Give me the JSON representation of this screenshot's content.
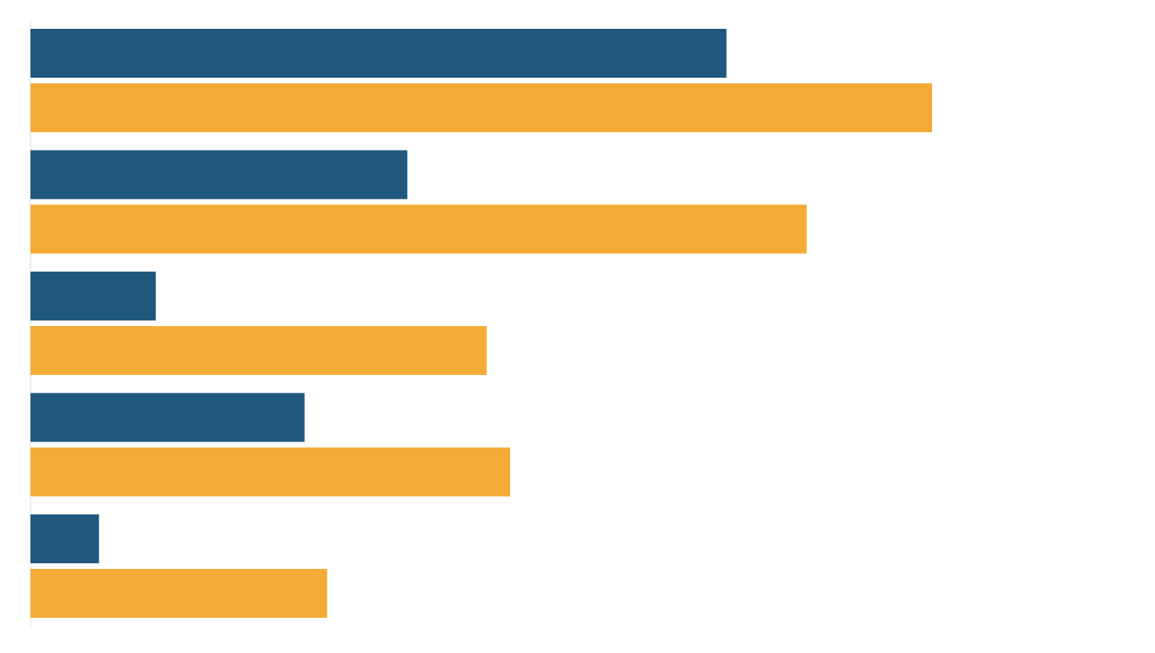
{
  "chart_data": {
    "type": "bar",
    "orientation": "horizontal",
    "title": "",
    "xlabel": "",
    "ylabel": "",
    "categories": [
      "",
      "",
      "",
      "",
      ""
    ],
    "xlim": [
      0,
      100
    ],
    "grid": false,
    "legend": "none",
    "series": [
      {
        "color": "#20587d",
        "values": [
          77.2,
          41.8,
          13.9,
          30.4,
          7.6
        ]
      },
      {
        "color": "#f3ab35",
        "values": [
          100.0,
          86.1,
          50.6,
          53.2,
          32.9
        ]
      }
    ]
  }
}
